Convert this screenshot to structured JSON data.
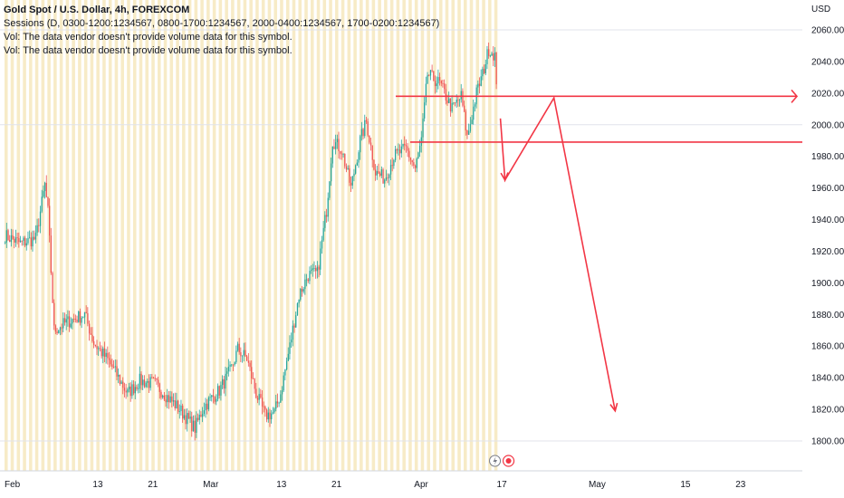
{
  "legend": {
    "symbol": "Gold Spot / U.S. Dollar, 4h, FOREXCOM",
    "sessions": "Sessions (D, 0300-1200:1234567, 0800-1700:1234567, 2000-0400:1234567, 1700-0200:1234567)",
    "vol1": "Vol: The data vendor doesn't provide volume data for this symbol.",
    "vol2": "Vol: The data vendor doesn't provide volume data for this symbol."
  },
  "price_axis": {
    "currency": "USD"
  },
  "colors": {
    "up": "#26a69a",
    "down": "#ef5350",
    "session_shade": "#f6e7bd",
    "drawing": "#f23645",
    "grid": "#e0e3eb"
  },
  "chart_data": {
    "type": "candlestick",
    "symbol": "XAUUSD",
    "timeframe": "4h",
    "y_ticks": [
      1800,
      1820,
      1840,
      1860,
      1880,
      1900,
      1920,
      1940,
      1960,
      1980,
      2000,
      2020,
      2040,
      2060
    ],
    "ylim": [
      1795,
      2065
    ],
    "x_ticks": [
      {
        "label": "Feb",
        "index": 0
      },
      {
        "label": "13",
        "index": 60
      },
      {
        "label": "21",
        "index": 96
      },
      {
        "label": "Mar",
        "index": 132
      },
      {
        "label": "13",
        "index": 180
      },
      {
        "label": "21",
        "index": 216
      },
      {
        "label": "Apr",
        "index": 270
      },
      {
        "label": "17",
        "index": 324
      },
      {
        "label": "May",
        "index": 384
      },
      {
        "label": "15",
        "index": 444
      },
      {
        "label": "23",
        "index": 480
      }
    ],
    "price_path": [
      [
        0,
        1930
      ],
      [
        10,
        1925
      ],
      [
        20,
        1928
      ],
      [
        26,
        1962
      ],
      [
        28,
        1945
      ],
      [
        32,
        1870
      ],
      [
        40,
        1875
      ],
      [
        52,
        1880
      ],
      [
        58,
        1862
      ],
      [
        68,
        1850
      ],
      [
        80,
        1830
      ],
      [
        88,
        1838
      ],
      [
        98,
        1836
      ],
      [
        106,
        1828
      ],
      [
        114,
        1820
      ],
      [
        124,
        1808
      ],
      [
        130,
        1822
      ],
      [
        140,
        1832
      ],
      [
        148,
        1846
      ],
      [
        152,
        1858
      ],
      [
        158,
        1852
      ],
      [
        164,
        1830
      ],
      [
        170,
        1816
      ],
      [
        176,
        1818
      ],
      [
        180,
        1830
      ],
      [
        186,
        1860
      ],
      [
        192,
        1892
      ],
      [
        198,
        1905
      ],
      [
        204,
        1906
      ],
      [
        210,
        1946
      ],
      [
        214,
        1990
      ],
      [
        220,
        1984
      ],
      [
        226,
        1960
      ],
      [
        232,
        1990
      ],
      [
        236,
        2002
      ],
      [
        242,
        1970
      ],
      [
        248,
        1966
      ],
      [
        254,
        1980
      ],
      [
        262,
        1985
      ],
      [
        268,
        1972
      ],
      [
        272,
        1990
      ],
      [
        276,
        2032
      ],
      [
        284,
        2026
      ],
      [
        292,
        2010
      ],
      [
        298,
        2018
      ],
      [
        302,
        1992
      ],
      [
        308,
        2020
      ],
      [
        312,
        2032
      ],
      [
        316,
        2048
      ],
      [
        320,
        2044
      ],
      [
        322,
        2000
      ]
    ],
    "horizontal_lines": [
      {
        "name": "upper-resistance",
        "price": 2018,
        "arrow": true
      },
      {
        "name": "lower-support",
        "price": 1989,
        "arrow": false
      }
    ],
    "projection_path": [
      {
        "index": 324,
        "price": 2004
      },
      {
        "index": 327,
        "price": 1965
      },
      {
        "index": 359,
        "price": 2017
      },
      {
        "index": 399,
        "price": 1819
      }
    ],
    "sessions_shaded": {
      "from_index": 0,
      "to_index": 324
    }
  }
}
